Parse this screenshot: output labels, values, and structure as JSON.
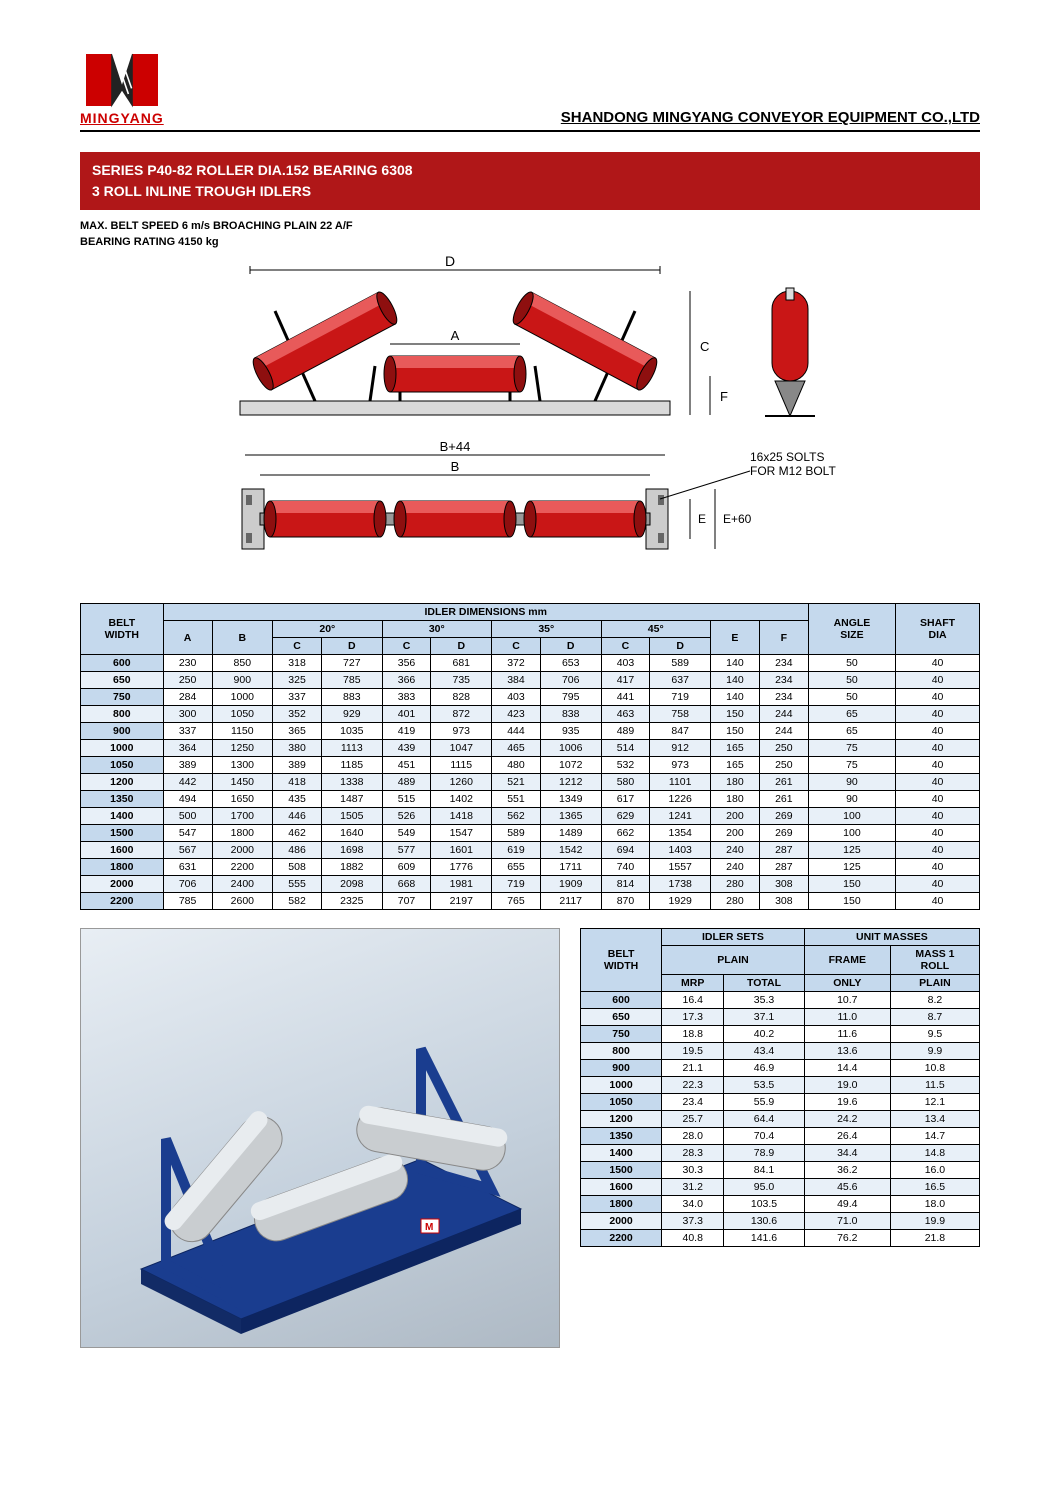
{
  "header": {
    "logo_text": "MINGYANG",
    "company": "SHANDONG MINGYANG CONVEYOR EQUIPMENT CO.,LTD"
  },
  "title": {
    "line1": "SERIES P40-82 ROLLER DIA.152 BEARING 6308",
    "line2": "3 ROLL INLINE TROUGH IDLERS"
  },
  "specs": {
    "line1": "MAX. BELT SPEED 6 m/s BROACHING PLAIN 22 A/F",
    "line2": "BEARING RATING 4150 kg"
  },
  "diagram": {
    "labels": {
      "D": "D",
      "A": "A",
      "C": "C",
      "F": "F",
      "B44": "B+44",
      "B": "B",
      "E": "E",
      "E60": "E+60",
      "slots": "16x25 SOLTS\nFOR M12 BOLT"
    },
    "colors": {
      "roller": "#c91616",
      "roller_dark": "#8e0f0f",
      "frame": "#222",
      "base": "#d9d9d9"
    }
  },
  "dim_table": {
    "title": "IDLER DIMENSIONS mm",
    "belt": "BELT\nWIDTH",
    "angle": "ANGLE\nSIZE",
    "shaft": "SHAFT\nDIA",
    "angles": [
      "20°",
      "30°",
      "35°",
      "45°"
    ],
    "cols_cd": [
      "C",
      "D"
    ],
    "col_a": "A",
    "col_b": "B",
    "col_e": "E",
    "col_f": "F",
    "rows": [
      {
        "bw": "600",
        "A": "230",
        "B": "850",
        "C20": "318",
        "D20": "727",
        "C30": "356",
        "D30": "681",
        "C35": "372",
        "D35": "653",
        "C45": "403",
        "D45": "589",
        "E": "140",
        "F": "234",
        "ang": "50",
        "sh": "40"
      },
      {
        "bw": "650",
        "A": "250",
        "B": "900",
        "C20": "325",
        "D20": "785",
        "C30": "366",
        "D30": "735",
        "C35": "384",
        "D35": "706",
        "C45": "417",
        "D45": "637",
        "E": "140",
        "F": "234",
        "ang": "50",
        "sh": "40"
      },
      {
        "bw": "750",
        "A": "284",
        "B": "1000",
        "C20": "337",
        "D20": "883",
        "C30": "383",
        "D30": "828",
        "C35": "403",
        "D35": "795",
        "C45": "441",
        "D45": "719",
        "E": "140",
        "F": "234",
        "ang": "50",
        "sh": "40"
      },
      {
        "bw": "800",
        "A": "300",
        "B": "1050",
        "C20": "352",
        "D20": "929",
        "C30": "401",
        "D30": "872",
        "C35": "423",
        "D35": "838",
        "C45": "463",
        "D45": "758",
        "E": "150",
        "F": "244",
        "ang": "65",
        "sh": "40"
      },
      {
        "bw": "900",
        "A": "337",
        "B": "1150",
        "C20": "365",
        "D20": "1035",
        "C30": "419",
        "D30": "973",
        "C35": "444",
        "D35": "935",
        "C45": "489",
        "D45": "847",
        "E": "150",
        "F": "244",
        "ang": "65",
        "sh": "40"
      },
      {
        "bw": "1000",
        "A": "364",
        "B": "1250",
        "C20": "380",
        "D20": "1113",
        "C30": "439",
        "D30": "1047",
        "C35": "465",
        "D35": "1006",
        "C45": "514",
        "D45": "912",
        "E": "165",
        "F": "250",
        "ang": "75",
        "sh": "40"
      },
      {
        "bw": "1050",
        "A": "389",
        "B": "1300",
        "C20": "389",
        "D20": "1185",
        "C30": "451",
        "D30": "1115",
        "C35": "480",
        "D35": "1072",
        "C45": "532",
        "D45": "973",
        "E": "165",
        "F": "250",
        "ang": "75",
        "sh": "40"
      },
      {
        "bw": "1200",
        "A": "442",
        "B": "1450",
        "C20": "418",
        "D20": "1338",
        "C30": "489",
        "D30": "1260",
        "C35": "521",
        "D35": "1212",
        "C45": "580",
        "D45": "1101",
        "E": "180",
        "F": "261",
        "ang": "90",
        "sh": "40"
      },
      {
        "bw": "1350",
        "A": "494",
        "B": "1650",
        "C20": "435",
        "D20": "1487",
        "C30": "515",
        "D30": "1402",
        "C35": "551",
        "D35": "1349",
        "C45": "617",
        "D45": "1226",
        "E": "180",
        "F": "261",
        "ang": "90",
        "sh": "40"
      },
      {
        "bw": "1400",
        "A": "500",
        "B": "1700",
        "C20": "446",
        "D20": "1505",
        "C30": "526",
        "D30": "1418",
        "C35": "562",
        "D35": "1365",
        "C45": "629",
        "D45": "1241",
        "E": "200",
        "F": "269",
        "ang": "100",
        "sh": "40"
      },
      {
        "bw": "1500",
        "A": "547",
        "B": "1800",
        "C20": "462",
        "D20": "1640",
        "C30": "549",
        "D30": "1547",
        "C35": "589",
        "D35": "1489",
        "C45": "662",
        "D45": "1354",
        "E": "200",
        "F": "269",
        "ang": "100",
        "sh": "40"
      },
      {
        "bw": "1600",
        "A": "567",
        "B": "2000",
        "C20": "486",
        "D20": "1698",
        "C30": "577",
        "D30": "1601",
        "C35": "619",
        "D35": "1542",
        "C45": "694",
        "D45": "1403",
        "E": "240",
        "F": "287",
        "ang": "125",
        "sh": "40"
      },
      {
        "bw": "1800",
        "A": "631",
        "B": "2200",
        "C20": "508",
        "D20": "1882",
        "C30": "609",
        "D30": "1776",
        "C35": "655",
        "D35": "1711",
        "C45": "740",
        "D45": "1557",
        "E": "240",
        "F": "287",
        "ang": "125",
        "sh": "40"
      },
      {
        "bw": "2000",
        "A": "706",
        "B": "2400",
        "C20": "555",
        "D20": "2098",
        "C30": "668",
        "D30": "1981",
        "C35": "719",
        "D35": "1909",
        "C45": "814",
        "D45": "1738",
        "E": "280",
        "F": "308",
        "ang": "150",
        "sh": "40"
      },
      {
        "bw": "2200",
        "A": "785",
        "B": "2600",
        "C20": "582",
        "D20": "2325",
        "C30": "707",
        "D30": "2197",
        "C35": "765",
        "D35": "2117",
        "C45": "870",
        "D45": "1929",
        "E": "280",
        "F": "308",
        "ang": "150",
        "sh": "40"
      }
    ]
  },
  "mass_table": {
    "h_sets": "IDLER SETS",
    "h_masses": "UNIT MASSES",
    "h_belt": "BELT\nWIDTH",
    "h_plain": "PLAIN",
    "h_frame": "FRAME",
    "h_mass1": "MASS 1\nROLL",
    "h_mrp": "MRP",
    "h_total": "TOTAL",
    "h_only": "ONLY",
    "h_plain2": "PLAIN",
    "rows": [
      {
        "bw": "600",
        "mrp": "16.4",
        "tot": "35.3",
        "fr": "10.7",
        "m1": "8.2"
      },
      {
        "bw": "650",
        "mrp": "17.3",
        "tot": "37.1",
        "fr": "11.0",
        "m1": "8.7"
      },
      {
        "bw": "750",
        "mrp": "18.8",
        "tot": "40.2",
        "fr": "11.6",
        "m1": "9.5"
      },
      {
        "bw": "800",
        "mrp": "19.5",
        "tot": "43.4",
        "fr": "13.6",
        "m1": "9.9"
      },
      {
        "bw": "900",
        "mrp": "21.1",
        "tot": "46.9",
        "fr": "14.4",
        "m1": "10.8"
      },
      {
        "bw": "1000",
        "mrp": "22.3",
        "tot": "53.5",
        "fr": "19.0",
        "m1": "11.5"
      },
      {
        "bw": "1050",
        "mrp": "23.4",
        "tot": "55.9",
        "fr": "19.6",
        "m1": "12.1"
      },
      {
        "bw": "1200",
        "mrp": "25.7",
        "tot": "64.4",
        "fr": "24.2",
        "m1": "13.4"
      },
      {
        "bw": "1350",
        "mrp": "28.0",
        "tot": "70.4",
        "fr": "26.4",
        "m1": "14.7"
      },
      {
        "bw": "1400",
        "mrp": "28.3",
        "tot": "78.9",
        "fr": "34.4",
        "m1": "14.8"
      },
      {
        "bw": "1500",
        "mrp": "30.3",
        "tot": "84.1",
        "fr": "36.2",
        "m1": "16.0"
      },
      {
        "bw": "1600",
        "mrp": "31.2",
        "tot": "95.0",
        "fr": "45.6",
        "m1": "16.5"
      },
      {
        "bw": "1800",
        "mrp": "34.0",
        "tot": "103.5",
        "fr": "49.4",
        "m1": "18.0"
      },
      {
        "bw": "2000",
        "mrp": "37.3",
        "tot": "130.6",
        "fr": "71.0",
        "m1": "19.9"
      },
      {
        "bw": "2200",
        "mrp": "40.8",
        "tot": "141.6",
        "fr": "76.2",
        "m1": "21.8"
      }
    ]
  },
  "render_colors": {
    "frame": "#1a3d8f",
    "roller": "#c9cdd0"
  }
}
